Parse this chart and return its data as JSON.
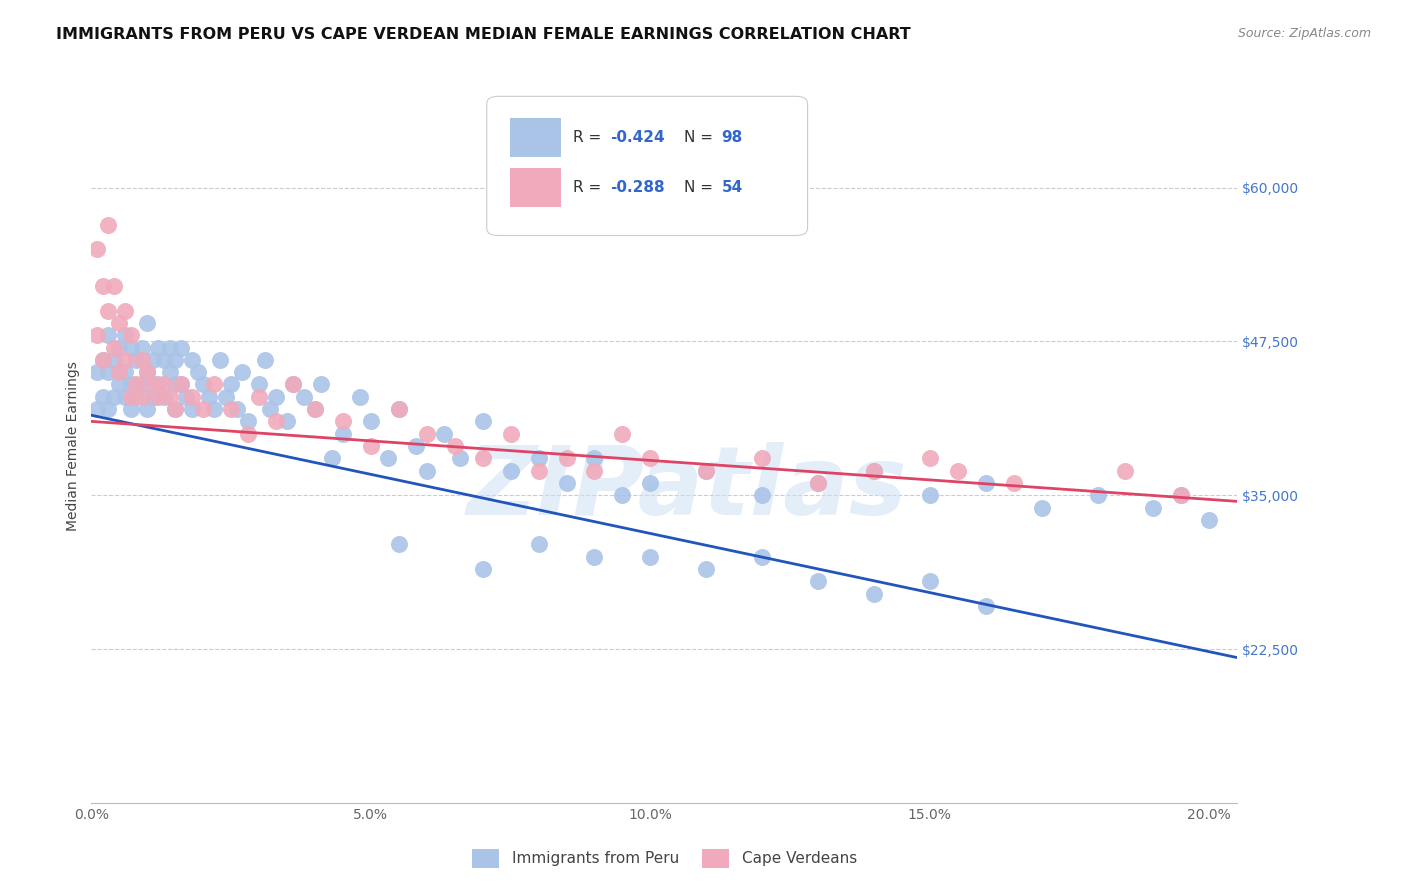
{
  "title": "IMMIGRANTS FROM PERU VS CAPE VERDEAN MEDIAN FEMALE EARNINGS CORRELATION CHART",
  "source": "Source: ZipAtlas.com",
  "ylabel": "Median Female Earnings",
  "xlim": [
    0.0,
    0.205
  ],
  "ylim": [
    10000,
    68000
  ],
  "yticks": [
    22500,
    35000,
    47500,
    60000
  ],
  "ytick_labels": [
    "$22,500",
    "$35,000",
    "$47,500",
    "$60,000"
  ],
  "xticks": [
    0.0,
    0.05,
    0.1,
    0.15,
    0.2
  ],
  "xtick_labels": [
    "0.0%",
    "5.0%",
    "10.0%",
    "15.0%",
    "20.0%"
  ],
  "watermark": "ZIPatlas",
  "legend_R1": "-0.424",
  "legend_N1": "98",
  "legend_R2": "-0.288",
  "legend_N2": "54",
  "color_peru": "#aac4e8",
  "color_cape": "#f0aabb",
  "color_line_peru": "#2255bb",
  "color_line_cape": "#dd4466",
  "color_text_blue": "#3366cc",
  "color_axis_right": "#4477cc",
  "background": "#ffffff",
  "grid_color": "#cccccc",
  "peru_line_x": [
    0.0,
    0.205
  ],
  "peru_line_y": [
    41500,
    21800
  ],
  "cape_line_x": [
    0.0,
    0.205
  ],
  "cape_line_y": [
    41000,
    34500
  ],
  "peru_x": [
    0.001,
    0.001,
    0.002,
    0.002,
    0.003,
    0.003,
    0.003,
    0.004,
    0.004,
    0.005,
    0.005,
    0.006,
    0.006,
    0.006,
    0.007,
    0.007,
    0.007,
    0.008,
    0.008,
    0.009,
    0.009,
    0.01,
    0.01,
    0.01,
    0.011,
    0.011,
    0.012,
    0.012,
    0.013,
    0.013,
    0.014,
    0.014,
    0.015,
    0.015,
    0.015,
    0.016,
    0.016,
    0.017,
    0.018,
    0.018,
    0.019,
    0.02,
    0.021,
    0.022,
    0.023,
    0.024,
    0.025,
    0.026,
    0.027,
    0.028,
    0.03,
    0.031,
    0.032,
    0.033,
    0.035,
    0.036,
    0.038,
    0.04,
    0.041,
    0.043,
    0.045,
    0.048,
    0.05,
    0.053,
    0.055,
    0.058,
    0.06,
    0.063,
    0.066,
    0.07,
    0.075,
    0.08,
    0.085,
    0.09,
    0.095,
    0.1,
    0.11,
    0.12,
    0.13,
    0.14,
    0.15,
    0.16,
    0.17,
    0.18,
    0.19,
    0.195,
    0.2,
    0.055,
    0.07,
    0.08,
    0.09,
    0.1,
    0.11,
    0.12,
    0.13,
    0.14,
    0.15,
    0.16
  ],
  "peru_y": [
    42000,
    45000,
    46000,
    43000,
    45000,
    42000,
    48000,
    43000,
    46000,
    44000,
    47000,
    45000,
    43000,
    48000,
    44000,
    47000,
    42000,
    46000,
    43000,
    47000,
    44000,
    45000,
    42000,
    49000,
    46000,
    43000,
    47000,
    44000,
    46000,
    43000,
    45000,
    47000,
    44000,
    46000,
    42000,
    47000,
    44000,
    43000,
    46000,
    42000,
    45000,
    44000,
    43000,
    42000,
    46000,
    43000,
    44000,
    42000,
    45000,
    41000,
    44000,
    46000,
    42000,
    43000,
    41000,
    44000,
    43000,
    42000,
    44000,
    38000,
    40000,
    43000,
    41000,
    38000,
    42000,
    39000,
    37000,
    40000,
    38000,
    41000,
    37000,
    38000,
    36000,
    38000,
    35000,
    36000,
    37000,
    35000,
    36000,
    37000,
    35000,
    36000,
    34000,
    35000,
    34000,
    35000,
    33000,
    31000,
    29000,
    31000,
    30000,
    30000,
    29000,
    30000,
    28000,
    27000,
    28000,
    26000
  ],
  "cape_x": [
    0.001,
    0.001,
    0.002,
    0.002,
    0.003,
    0.003,
    0.004,
    0.004,
    0.005,
    0.005,
    0.006,
    0.006,
    0.007,
    0.007,
    0.008,
    0.009,
    0.009,
    0.01,
    0.011,
    0.012,
    0.013,
    0.014,
    0.015,
    0.016,
    0.018,
    0.02,
    0.022,
    0.025,
    0.028,
    0.03,
    0.033,
    0.036,
    0.04,
    0.045,
    0.05,
    0.055,
    0.06,
    0.065,
    0.07,
    0.075,
    0.08,
    0.085,
    0.09,
    0.095,
    0.1,
    0.11,
    0.12,
    0.13,
    0.14,
    0.15,
    0.155,
    0.165,
    0.185,
    0.195
  ],
  "cape_y": [
    55000,
    48000,
    52000,
    46000,
    57000,
    50000,
    47000,
    52000,
    45000,
    49000,
    46000,
    50000,
    43000,
    48000,
    44000,
    46000,
    43000,
    45000,
    44000,
    43000,
    44000,
    43000,
    42000,
    44000,
    43000,
    42000,
    44000,
    42000,
    40000,
    43000,
    41000,
    44000,
    42000,
    41000,
    39000,
    42000,
    40000,
    39000,
    38000,
    40000,
    37000,
    38000,
    37000,
    40000,
    38000,
    37000,
    38000,
    36000,
    37000,
    38000,
    37000,
    36000,
    37000,
    35000
  ],
  "title_fontsize": 11.5,
  "label_fontsize": 10,
  "tick_fontsize": 10,
  "source_fontsize": 9
}
